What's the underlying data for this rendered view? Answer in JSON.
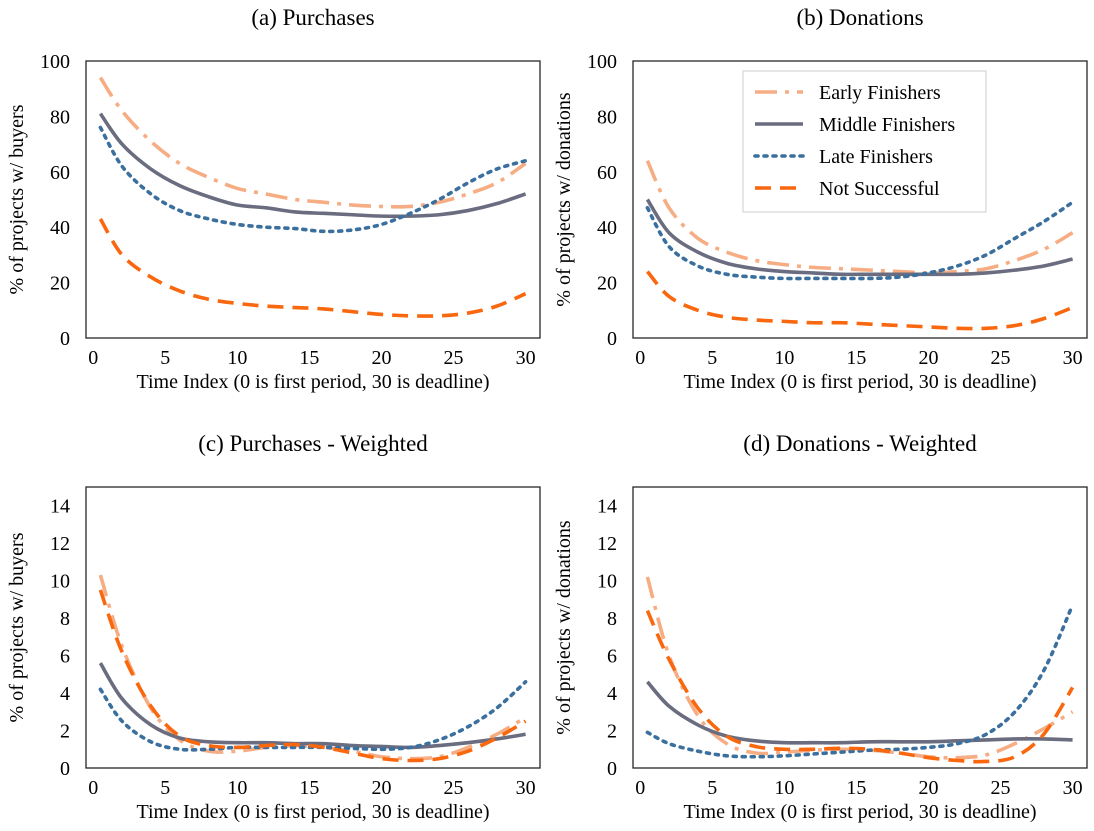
{
  "chart_data": [
    {
      "type": "line",
      "title": "(a) Purchases",
      "xlabel": "Time Index (0 is first period, 30 is deadline)",
      "ylabel": "% of projects w/ buyers",
      "xlim": [
        -0.5,
        31
      ],
      "ylim": [
        0,
        100
      ],
      "xticks": [
        "0",
        "5",
        "10",
        "15",
        "20",
        "25",
        "30"
      ],
      "yticks": [
        "0",
        "20",
        "40",
        "60",
        "80",
        "100"
      ],
      "grid": false,
      "legend": false,
      "series": [
        {
          "series_key": "early",
          "x": [
            0.5,
            2,
            4,
            6,
            8,
            10,
            12,
            14,
            16,
            18,
            20,
            22,
            24,
            26,
            28,
            30
          ],
          "y": [
            94,
            82,
            71,
            63,
            58,
            54,
            52,
            50,
            49,
            48,
            47.5,
            47.5,
            49,
            52,
            56,
            63
          ]
        },
        {
          "series_key": "middle",
          "x": [
            0.5,
            2,
            4,
            6,
            8,
            10,
            12,
            14,
            16,
            18,
            20,
            22,
            24,
            26,
            28,
            30
          ],
          "y": [
            81,
            70,
            61,
            55,
            51,
            48,
            47,
            45.5,
            45,
            44.5,
            44,
            44,
            44.5,
            46,
            48.5,
            52
          ]
        },
        {
          "series_key": "late",
          "x": [
            0.5,
            2,
            4,
            6,
            8,
            10,
            12,
            14,
            16,
            18,
            20,
            22,
            24,
            26,
            28,
            30
          ],
          "y": [
            76,
            62,
            52,
            46,
            43,
            41,
            40,
            39.5,
            38.5,
            39,
            41,
            45,
            50,
            56,
            61,
            64
          ]
        },
        {
          "series_key": "notsucc",
          "x": [
            0.5,
            2,
            4,
            6,
            8,
            10,
            12,
            14,
            16,
            18,
            20,
            22,
            24,
            26,
            28,
            30
          ],
          "y": [
            43,
            30,
            22,
            17,
            14,
            12.5,
            11.5,
            11,
            10.5,
            9.5,
            8.5,
            8,
            8,
            9,
            11.5,
            16
          ]
        }
      ]
    },
    {
      "type": "line",
      "title": "(b) Donations",
      "xlabel": "Time Index (0 is first period, 30 is deadline)",
      "ylabel": "% of projects w/ donations",
      "xlim": [
        -0.5,
        31
      ],
      "ylim": [
        0,
        100
      ],
      "xticks": [
        "0",
        "5",
        "10",
        "15",
        "20",
        "25",
        "30"
      ],
      "yticks": [
        "0",
        "20",
        "40",
        "60",
        "80",
        "100"
      ],
      "grid": false,
      "legend": true,
      "legend_position": "top-right",
      "series": [
        {
          "name": "Early Finishers",
          "series_key": "early",
          "x": [
            0.5,
            2,
            4,
            6,
            8,
            10,
            12,
            14,
            16,
            18,
            20,
            22,
            24,
            26,
            28,
            30
          ],
          "y": [
            64,
            47,
            36,
            31,
            28,
            26.5,
            25.5,
            25,
            24.5,
            24,
            23.5,
            24,
            25,
            28,
            32,
            38
          ]
        },
        {
          "name": "Middle Finishers",
          "series_key": "middle",
          "x": [
            0.5,
            2,
            4,
            6,
            8,
            10,
            12,
            14,
            16,
            18,
            20,
            22,
            24,
            26,
            28,
            30
          ],
          "y": [
            50,
            38,
            31,
            27,
            25,
            24,
            23.5,
            23,
            23,
            23,
            23,
            23,
            23.5,
            24.5,
            26,
            28.5
          ]
        },
        {
          "name": "Late Finishers",
          "series_key": "late",
          "x": [
            0.5,
            2,
            4,
            6,
            8,
            10,
            12,
            14,
            16,
            18,
            20,
            22,
            24,
            26,
            28,
            30
          ],
          "y": [
            47,
            33,
            26,
            23,
            22,
            21.5,
            21.5,
            21.5,
            21.5,
            22,
            23.5,
            26,
            30,
            36,
            42,
            49
          ]
        },
        {
          "name": "Not Successful",
          "series_key": "notsucc",
          "x": [
            0.5,
            2,
            4,
            6,
            8,
            10,
            12,
            14,
            16,
            18,
            20,
            22,
            24,
            26,
            28,
            30
          ],
          "y": [
            24,
            15,
            10,
            7.5,
            6.5,
            6,
            5.5,
            5.5,
            5,
            4.5,
            4,
            3.5,
            3.5,
            4.5,
            7,
            11
          ]
        }
      ]
    },
    {
      "type": "line",
      "title": "(c) Purchases - Weighted",
      "xlabel": "Time Index (0 is first period, 30 is deadline)",
      "ylabel": "% of projects w/ buyers",
      "xlim": [
        -0.5,
        31
      ],
      "ylim": [
        0,
        15
      ],
      "xticks": [
        "0",
        "5",
        "10",
        "15",
        "20",
        "25",
        "30"
      ],
      "yticks": [
        "0",
        "2",
        "4",
        "6",
        "8",
        "10",
        "12",
        "14"
      ],
      "grid": false,
      "legend": false,
      "series": [
        {
          "series_key": "early",
          "x": [
            0.5,
            2,
            4,
            6,
            8,
            10,
            12,
            14,
            16,
            18,
            20,
            22,
            24,
            26,
            28,
            30
          ],
          "y": [
            10.3,
            6.5,
            3.2,
            1.5,
            0.9,
            0.9,
            1.1,
            1.2,
            1.1,
            0.9,
            0.6,
            0.5,
            0.6,
            1.1,
            1.8,
            2.7
          ]
        },
        {
          "series_key": "middle",
          "x": [
            0.5,
            2,
            4,
            6,
            8,
            10,
            12,
            14,
            16,
            18,
            20,
            22,
            24,
            26,
            28,
            30
          ],
          "y": [
            5.6,
            3.7,
            2.3,
            1.6,
            1.4,
            1.35,
            1.35,
            1.3,
            1.3,
            1.2,
            1.15,
            1.1,
            1.2,
            1.35,
            1.55,
            1.8
          ]
        },
        {
          "series_key": "late",
          "x": [
            0.5,
            2,
            4,
            6,
            8,
            10,
            12,
            14,
            16,
            18,
            20,
            22,
            24,
            26,
            28,
            30
          ],
          "y": [
            4.2,
            2.5,
            1.4,
            1.0,
            1.0,
            1.1,
            1.1,
            1.1,
            1.1,
            1.05,
            1.0,
            1.1,
            1.5,
            2.2,
            3.2,
            4.6
          ]
        },
        {
          "series_key": "notsucc",
          "x": [
            0.5,
            2,
            4,
            6,
            8,
            10,
            12,
            14,
            16,
            18,
            20,
            22,
            24,
            26,
            28,
            30
          ],
          "y": [
            9.5,
            6.2,
            3.3,
            1.7,
            1.2,
            1.1,
            1.2,
            1.25,
            1.1,
            0.8,
            0.5,
            0.4,
            0.5,
            0.9,
            1.6,
            2.5
          ]
        }
      ]
    },
    {
      "type": "line",
      "title": "(d) Donations - Weighted",
      "xlabel": "Time Index (0 is first period, 30 is deadline)",
      "ylabel": "% of projects w/ donations",
      "xlim": [
        -0.5,
        31
      ],
      "ylim": [
        0,
        15
      ],
      "xticks": [
        "0",
        "5",
        "10",
        "15",
        "20",
        "25",
        "30"
      ],
      "yticks": [
        "0",
        "2",
        "4",
        "6",
        "8",
        "10",
        "12",
        "14"
      ],
      "grid": false,
      "legend": false,
      "series": [
        {
          "series_key": "early",
          "x": [
            0.5,
            2,
            4,
            6,
            8,
            10,
            12,
            14,
            16,
            18,
            20,
            22,
            24,
            26,
            28,
            30
          ],
          "y": [
            10.2,
            6.0,
            2.8,
            1.3,
            0.8,
            0.85,
            0.95,
            1.0,
            0.95,
            0.8,
            0.6,
            0.55,
            0.7,
            1.3,
            2.1,
            3.0
          ]
        },
        {
          "series_key": "middle",
          "x": [
            0.5,
            2,
            4,
            6,
            8,
            10,
            12,
            14,
            16,
            18,
            20,
            22,
            24,
            26,
            28,
            30
          ],
          "y": [
            4.6,
            3.3,
            2.3,
            1.7,
            1.45,
            1.35,
            1.35,
            1.35,
            1.4,
            1.4,
            1.4,
            1.45,
            1.5,
            1.55,
            1.55,
            1.5
          ]
        },
        {
          "series_key": "late",
          "x": [
            0.5,
            2,
            4,
            6,
            8,
            10,
            12,
            14,
            16,
            18,
            20,
            22,
            24,
            26,
            28,
            30
          ],
          "y": [
            1.9,
            1.3,
            0.9,
            0.65,
            0.6,
            0.65,
            0.75,
            0.85,
            0.95,
            1.0,
            1.1,
            1.3,
            1.8,
            3.0,
            5.2,
            8.7
          ]
        },
        {
          "series_key": "notsucc",
          "x": [
            0.5,
            2,
            4,
            6,
            8,
            10,
            12,
            14,
            16,
            18,
            20,
            22,
            24,
            26,
            28,
            30
          ],
          "y": [
            8.4,
            5.8,
            3.2,
            1.7,
            1.15,
            1.0,
            1.0,
            1.05,
            1.0,
            0.8,
            0.55,
            0.4,
            0.35,
            0.6,
            1.8,
            4.3
          ]
        }
      ]
    }
  ],
  "style": {
    "colors": {
      "early": "#f6ad83",
      "middle": "#6a6c7f",
      "late": "#3a6f9e",
      "notsucc": "#f9670e"
    },
    "dashes": {
      "early": "22,8,4,8",
      "middle": "",
      "late": "3,6",
      "notsucc": "16,9"
    }
  }
}
